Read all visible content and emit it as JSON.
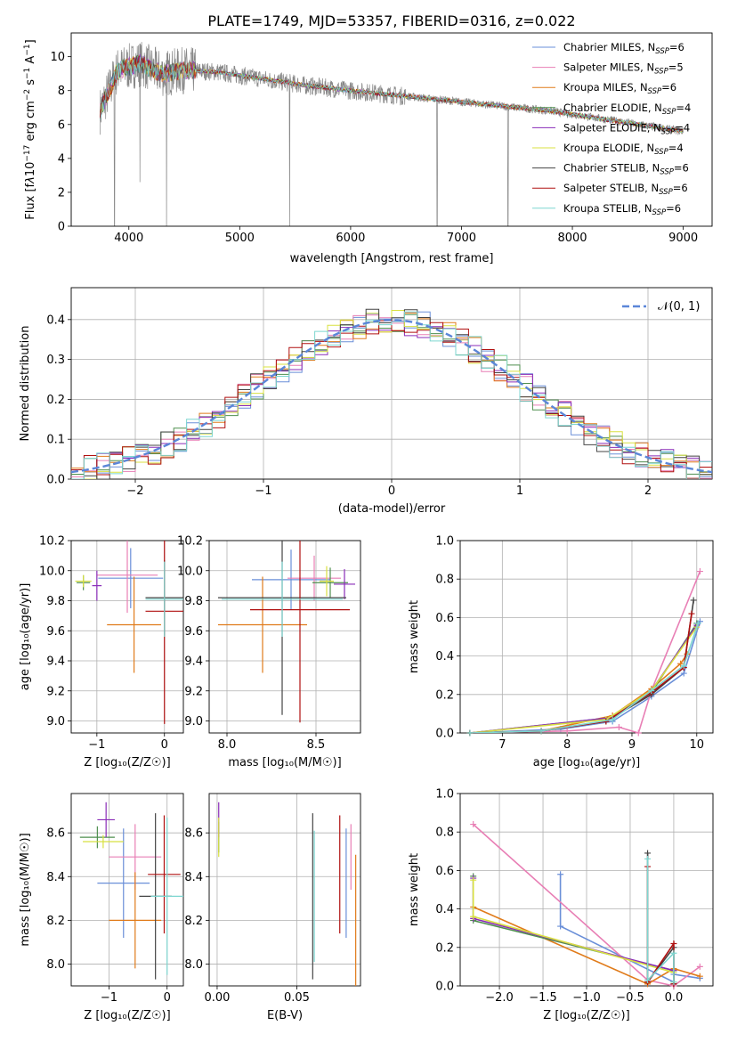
{
  "figure_title": "PLATE=1749, MJD=53357, FIBERID=0316, z=0.022",
  "models": [
    {
      "label": "Chabrier MILES, N",
      "sub": "SSP",
      "tail": "=6",
      "color": "#6a8fd8"
    },
    {
      "label": "Salpeter MILES, N",
      "sub": "SSP",
      "tail": "=5",
      "color": "#e87fb5"
    },
    {
      "label": "Kroupa MILES, N",
      "sub": "SSP",
      "tail": "=6",
      "color": "#e07b1a"
    },
    {
      "label": "Chabrier ELODIE, N",
      "sub": "SSP",
      "tail": "=4",
      "color": "#4f8f4f"
    },
    {
      "label": "Salpeter ELODIE, N",
      "sub": "SSP",
      "tail": "=4",
      "color": "#8a2cb8"
    },
    {
      "label": "Kroupa ELODIE, N",
      "sub": "SSP",
      "tail": "=4",
      "color": "#d8e040"
    },
    {
      "label": "Chabrier STELIB, N",
      "sub": "SSP",
      "tail": "=6",
      "color": "#444444"
    },
    {
      "label": "Salpeter STELIB, N",
      "sub": "SSP",
      "tail": "=6",
      "color": "#b01010"
    },
    {
      "label": "Kroupa STELIB, N",
      "sub": "SSP",
      "tail": "=6",
      "color": "#7dd6d0"
    }
  ],
  "chart_data": [
    {
      "id": "spectrum",
      "type": "line",
      "title": "PLATE=1749, MJD=53357, FIBERID=0316, z=0.022",
      "xlabel": "wavelength [Angstrom, rest frame]",
      "ylabel_pre": "Flux [f",
      "ylabel_mid": "λ",
      "ylabel_post": "10",
      "ylabel_sup1": "−17",
      "ylabel_rest": " erg cm",
      "ylabel_sup2": "−2",
      "ylabel_rest2": " s",
      "ylabel_sup3": "−1",
      "ylabel_rest3": " A",
      "ylabel_sup4": "−1",
      "ylabel_end": "]",
      "xlim": [
        3480,
        9260
      ],
      "ylim": [
        0,
        11.4
      ],
      "xticks": [
        4000,
        5000,
        6000,
        7000,
        8000,
        9000
      ],
      "yticks": [
        0,
        2,
        4,
        6,
        8,
        10
      ],
      "x": [
        3740,
        3900,
        4100,
        4300,
        4500,
        4800,
        5000,
        5300,
        5600,
        6000,
        6300,
        6600,
        6900,
        7200,
        7500,
        7800,
        8000,
        8300,
        8600,
        8800,
        9000
      ],
      "y": [
        6.8,
        9.2,
        9.6,
        9.0,
        9.2,
        9.1,
        8.9,
        8.6,
        8.3,
        8.0,
        7.8,
        7.6,
        7.4,
        7.2,
        7.0,
        6.8,
        6.6,
        6.3,
        6.0,
        5.8,
        5.6
      ],
      "spikes": [
        {
          "x": 3870,
          "y": 0.0
        },
        {
          "x": 4100,
          "y": 2.6
        },
        {
          "x": 4340,
          "y": 0.0
        },
        {
          "x": 5450,
          "y": 0.0
        },
        {
          "x": 6780,
          "y": 0.0
        },
        {
          "x": 7420,
          "y": 0.0
        }
      ]
    },
    {
      "id": "residuals",
      "type": "histogram",
      "xlabel": "(data-model)/error",
      "ylabel": "Normed distribution",
      "xlim": [
        -2.5,
        2.5
      ],
      "ylim": [
        0,
        0.48
      ],
      "xticks": [
        -2,
        -1,
        0,
        1,
        2
      ],
      "xticklabels": [
        "−2",
        "−1",
        "0",
        "1",
        "2"
      ],
      "yticks": [
        0.0,
        0.1,
        0.2,
        0.3,
        0.4
      ],
      "yticklabels": [
        "0.0",
        "0.1",
        "0.2",
        "0.3",
        "0.4"
      ],
      "grid": true,
      "legend_label": "𝒩(0, 1)",
      "bin_width": 0.1
    },
    {
      "id": "age_vs_Z",
      "type": "errorbar",
      "xlabel": "Z [log₁₀(Z/Z☉)]",
      "ylabel": "age  [log₁₀(age/yr)]",
      "xlim": [
        -1.38,
        0.28
      ],
      "ylim": [
        8.92,
        10.2
      ],
      "xticks": [
        -1,
        0
      ],
      "xticklabels": [
        "−1",
        "0"
      ],
      "yticks": [
        9.0,
        9.2,
        9.4,
        9.6,
        9.8,
        10.0,
        10.2
      ],
      "yticklabels": [
        "9.0",
        "9.2",
        "9.4",
        "9.6",
        "9.8",
        "10.0",
        "10.2"
      ],
      "points": [
        {
          "x": -0.5,
          "y": 9.95,
          "xerr": 0.48,
          "yerr": 0.2,
          "c": 0
        },
        {
          "x": -0.55,
          "y": 9.97,
          "xerr": 0.45,
          "yerr": 0.25,
          "c": 1
        },
        {
          "x": -0.45,
          "y": 9.64,
          "xerr": 0.4,
          "yerr": 0.32,
          "c": 2
        },
        {
          "x": -1.2,
          "y": 9.92,
          "xerr": 0.1,
          "yerr": 0.05,
          "c": 3
        },
        {
          "x": -1.0,
          "y": 9.9,
          "xerr": 0.07,
          "yerr": 0.1,
          "c": 4
        },
        {
          "x": -1.2,
          "y": 9.93,
          "xerr": 0.12,
          "yerr": 0.04,
          "c": 5
        },
        {
          "x": 0.0,
          "y": 9.82,
          "xerr": 0.28,
          "yerr": 0.25,
          "c": 6
        },
        {
          "x": 0.0,
          "y": 9.73,
          "xerr": 0.28,
          "yerr": 0.75,
          "c": 7
        },
        {
          "x": 0.0,
          "y": 9.81,
          "xerr": 0.28,
          "yerr": 0.25,
          "c": 8
        }
      ]
    },
    {
      "id": "age_vs_mass",
      "type": "errorbar",
      "xlabel": "mass [log₁₀(M/M☉)]",
      "ylabel": "",
      "xlim": [
        7.9,
        8.75
      ],
      "ylim": [
        8.92,
        10.2
      ],
      "xticks": [
        8.0,
        8.5
      ],
      "xticklabels": [
        "8.0",
        "8.5"
      ],
      "yticks": [
        9.0,
        9.2,
        9.4,
        9.6,
        9.8,
        10.0,
        10.2
      ],
      "yticklabels": [
        "9.0",
        "9.2",
        "9.4",
        "9.6",
        "9.8",
        "10.0",
        "10.2"
      ],
      "points": [
        {
          "x": 8.36,
          "y": 9.94,
          "xerr": 0.22,
          "yerr": 0.2,
          "c": 0
        },
        {
          "x": 8.49,
          "y": 9.95,
          "xerr": 0.15,
          "yerr": 0.15,
          "c": 1
        },
        {
          "x": 8.2,
          "y": 9.64,
          "xerr": 0.25,
          "yerr": 0.32,
          "c": 2
        },
        {
          "x": 8.58,
          "y": 9.92,
          "xerr": 0.1,
          "yerr": 0.1,
          "c": 3
        },
        {
          "x": 8.66,
          "y": 9.91,
          "xerr": 0.06,
          "yerr": 0.1,
          "c": 4
        },
        {
          "x": 8.56,
          "y": 9.93,
          "xerr": 0.04,
          "yerr": 0.1,
          "c": 5
        },
        {
          "x": 8.31,
          "y": 9.82,
          "xerr": 0.36,
          "yerr": 0.78,
          "c": 6
        },
        {
          "x": 8.41,
          "y": 9.74,
          "xerr": 0.28,
          "yerr": 0.75,
          "c": 7
        },
        {
          "x": 8.31,
          "y": 9.81,
          "xerr": 0.34,
          "yerr": 0.25,
          "c": 8
        }
      ]
    },
    {
      "id": "weight_vs_age",
      "type": "line",
      "xlabel": "age  [log₁₀(age/yr)]",
      "ylabel": "mass weight",
      "xlim": [
        6.35,
        10.25
      ],
      "ylim": [
        0,
        1
      ],
      "xticks": [
        7,
        8,
        9,
        10
      ],
      "xticklabels": [
        "7",
        "8",
        "9",
        "10"
      ],
      "yticks": [
        0.0,
        0.2,
        0.4,
        0.6,
        0.8,
        1.0
      ],
      "yticklabels": [
        "0.0",
        "0.2",
        "0.4",
        "0.6",
        "0.8",
        "1.0"
      ],
      "grid": true,
      "series": [
        {
          "c": 0,
          "x": [
            6.5,
            7.9,
            8.7,
            9.3,
            9.8,
            10.05
          ],
          "y": [
            0.0,
            0.02,
            0.06,
            0.19,
            0.31,
            0.58
          ]
        },
        {
          "c": 1,
          "x": [
            6.5,
            8.0,
            8.8,
            9.1,
            9.3,
            10.05
          ],
          "y": [
            0.0,
            0.01,
            0.03,
            0.0,
            0.22,
            0.84
          ]
        },
        {
          "c": 2,
          "x": [
            6.5,
            7.6,
            8.7,
            9.3,
            9.75,
            9.85
          ],
          "y": [
            0.0,
            0.01,
            0.09,
            0.23,
            0.36,
            0.41
          ]
        },
        {
          "c": 3,
          "x": [
            6.5,
            8.7,
            9.3,
            10.0
          ],
          "y": [
            0.0,
            0.08,
            0.21,
            0.57
          ]
        },
        {
          "c": 4,
          "x": [
            6.5,
            8.7,
            9.3,
            10.0
          ],
          "y": [
            0.0,
            0.08,
            0.22,
            0.56
          ]
        },
        {
          "c": 5,
          "x": [
            6.5,
            8.6,
            9.3,
            10.0
          ],
          "y": [
            0.0,
            0.07,
            0.22,
            0.55
          ]
        },
        {
          "c": 6,
          "x": [
            6.5,
            7.6,
            8.6,
            9.3,
            9.8,
            9.95
          ],
          "y": [
            0.0,
            0.01,
            0.06,
            0.2,
            0.34,
            0.69
          ]
        },
        {
          "c": 7,
          "x": [
            6.5,
            7.6,
            8.6,
            9.3,
            9.8,
            9.92
          ],
          "y": [
            0.0,
            0.01,
            0.06,
            0.21,
            0.34,
            0.62
          ]
        },
        {
          "c": 8,
          "x": [
            6.5,
            7.6,
            8.7,
            9.3,
            9.8,
            10.02
          ],
          "y": [
            0.0,
            0.01,
            0.07,
            0.22,
            0.35,
            0.57
          ]
        }
      ]
    },
    {
      "id": "mass_vs_Z",
      "type": "errorbar",
      "xlabel": "Z [log₁₀(Z/Z☉)]",
      "ylabel": "mass [log₁₀(M/M☉)]",
      "xlim": [
        -1.65,
        0.28
      ],
      "ylim": [
        7.9,
        8.78
      ],
      "xticks": [
        -1,
        0
      ],
      "xticklabels": [
        "−1",
        "0"
      ],
      "yticks": [
        8.0,
        8.2,
        8.4,
        8.6
      ],
      "yticklabels": [
        "8.0",
        "8.2",
        "8.4",
        "8.6"
      ],
      "points": [
        {
          "x": -0.75,
          "y": 8.37,
          "xerr": 0.45,
          "yerr": 0.25,
          "c": 0
        },
        {
          "x": -0.55,
          "y": 8.49,
          "xerr": 0.45,
          "yerr": 0.15,
          "c": 1
        },
        {
          "x": -0.55,
          "y": 8.2,
          "xerr": 0.45,
          "yerr": 0.22,
          "c": 2
        },
        {
          "x": -1.2,
          "y": 8.58,
          "xerr": 0.3,
          "yerr": 0.05,
          "c": 3
        },
        {
          "x": -1.05,
          "y": 8.66,
          "xerr": 0.15,
          "yerr": 0.08,
          "c": 4
        },
        {
          "x": -1.1,
          "y": 8.56,
          "xerr": 0.35,
          "yerr": 0.03,
          "c": 5
        },
        {
          "x": -0.2,
          "y": 8.31,
          "xerr": 0.28,
          "yerr": 0.38,
          "c": 6
        },
        {
          "x": -0.05,
          "y": 8.41,
          "xerr": 0.28,
          "yerr": 0.27,
          "c": 7
        },
        {
          "x": 0.0,
          "y": 8.31,
          "xerr": 0.28,
          "yerr": 0.36,
          "c": 8
        }
      ]
    },
    {
      "id": "mass_vs_ebv",
      "type": "errorbar",
      "xlabel": "E(B-V)",
      "ylabel": "",
      "xlim": [
        -0.005,
        0.09
      ],
      "ylim": [
        7.9,
        8.78
      ],
      "xticks": [
        0.0,
        0.05
      ],
      "xticklabels": [
        "0.00",
        "0.05"
      ],
      "yticks": [
        8.0,
        8.2,
        8.4,
        8.6
      ],
      "yticklabels": [
        "8.0",
        "8.2",
        "8.4",
        "8.6"
      ],
      "points": [
        {
          "x": 0.081,
          "y": 8.37,
          "xerr": 0,
          "yerr": 0.25,
          "c": 0
        },
        {
          "x": 0.084,
          "y": 8.49,
          "xerr": 0,
          "yerr": 0.15,
          "c": 1
        },
        {
          "x": 0.087,
          "y": 8.2,
          "xerr": 0,
          "yerr": 0.3,
          "c": 2
        },
        {
          "x": 0.001,
          "y": 8.58,
          "xerr": 0,
          "yerr": 0.07,
          "c": 3
        },
        {
          "x": 0.001,
          "y": 8.66,
          "xerr": 0,
          "yerr": 0.08,
          "c": 4
        },
        {
          "x": 0.001,
          "y": 8.58,
          "xerr": 0,
          "yerr": 0.09,
          "c": 5
        },
        {
          "x": 0.06,
          "y": 8.31,
          "xerr": 0,
          "yerr": 0.38,
          "c": 6
        },
        {
          "x": 0.077,
          "y": 8.41,
          "xerr": 0,
          "yerr": 0.27,
          "c": 7
        },
        {
          "x": 0.061,
          "y": 8.31,
          "xerr": 0,
          "yerr": 0.3,
          "c": 8
        }
      ]
    },
    {
      "id": "weight_vs_Z",
      "type": "line",
      "xlabel": "Z [log₁₀(Z/Z☉)]",
      "ylabel": "mass weight",
      "xlim": [
        -2.45,
        0.45
      ],
      "ylim": [
        0,
        1
      ],
      "xticks": [
        -2.0,
        -1.5,
        -1.0,
        -0.5,
        0.0
      ],
      "xticklabels": [
        "−2.0",
        "−1.5",
        "−1.0",
        "−0.5",
        "0.0"
      ],
      "yticks": [
        0.0,
        0.2,
        0.4,
        0.6,
        0.8,
        1.0
      ],
      "yticklabels": [
        "0.0",
        "0.2",
        "0.4",
        "0.6",
        "0.8",
        "1.0"
      ],
      "grid": true,
      "series": [
        {
          "c": 0,
          "x": [
            -1.3,
            -1.3,
            0.0,
            0.0,
            0.3
          ],
          "y": [
            0.58,
            0.31,
            0.02,
            0.06,
            0.04
          ]
        },
        {
          "c": 1,
          "x": [
            -2.3,
            -0.3,
            0.0,
            0.3
          ],
          "y": [
            0.84,
            0.03,
            0.0,
            0.1
          ]
        },
        {
          "c": 2,
          "x": [
            -2.3,
            -0.3,
            0.0,
            0.3
          ],
          "y": [
            0.41,
            0.01,
            0.09,
            0.05
          ]
        },
        {
          "c": 3,
          "x": [
            -2.3,
            -2.3,
            0.0,
            0.0
          ],
          "y": [
            0.57,
            0.34,
            0.08,
            0.01
          ]
        },
        {
          "c": 4,
          "x": [
            -2.3,
            -2.3,
            0.0,
            0.0
          ],
          "y": [
            0.56,
            0.35,
            0.08,
            0.01
          ]
        },
        {
          "c": 5,
          "x": [
            -2.3,
            -2.3,
            0.0,
            0.0
          ],
          "y": [
            0.55,
            0.36,
            0.07,
            0.02
          ]
        },
        {
          "c": 6,
          "x": [
            -0.3,
            -0.3,
            0.0,
            0.0
          ],
          "y": [
            0.69,
            0.02,
            0.2,
            0.01
          ]
        },
        {
          "c": 7,
          "x": [
            -0.3,
            -0.3,
            0.0,
            0.0
          ],
          "y": [
            0.62,
            0.02,
            0.22,
            0.01
          ]
        },
        {
          "c": 8,
          "x": [
            -0.3,
            -0.3,
            0.0,
            0.0
          ],
          "y": [
            0.66,
            0.03,
            0.17,
            0.02
          ]
        }
      ]
    }
  ]
}
